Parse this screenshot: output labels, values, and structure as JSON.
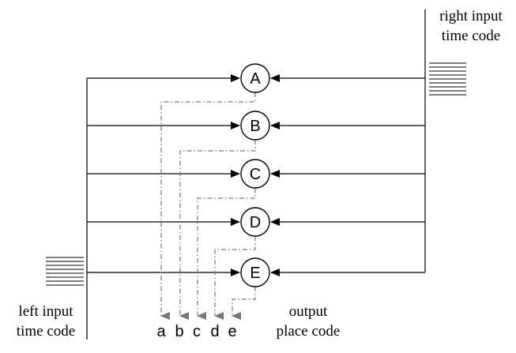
{
  "labels": {
    "right_input": [
      "right input",
      "time code"
    ],
    "left_input": [
      "left input",
      "time code"
    ],
    "output": [
      "output",
      "place code"
    ]
  },
  "nodes": [
    "A",
    "B",
    "C",
    "D",
    "E"
  ],
  "outputs": [
    "a",
    "b",
    "c",
    "d",
    "e"
  ],
  "colors": {
    "line": "#000000",
    "dashed": "#777777"
  }
}
